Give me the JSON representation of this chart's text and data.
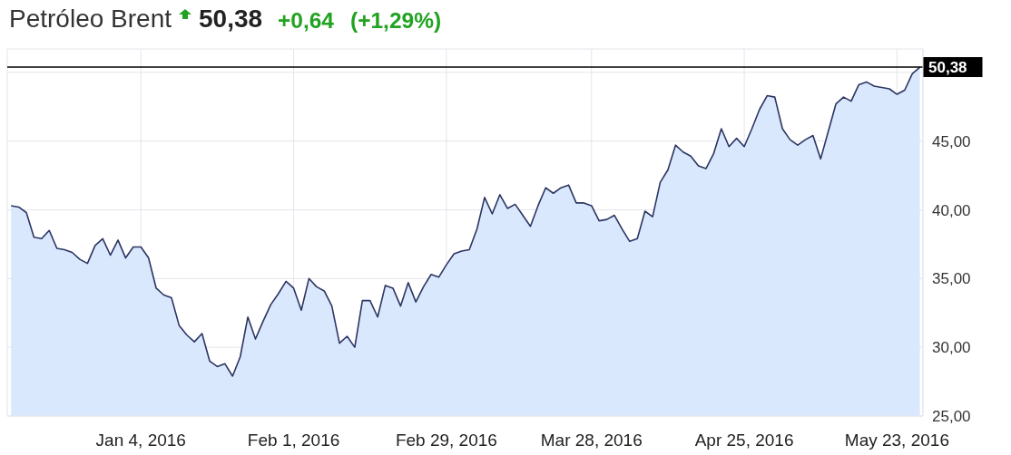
{
  "chart_data": {
    "type": "area",
    "title": "Petróleo Brent",
    "annotations": [
      "50,38",
      "+0,64",
      "(+1,29%)"
    ],
    "categories": [
      null,
      null,
      null,
      null,
      null,
      null,
      null,
      null,
      null,
      null,
      null,
      null,
      null,
      null,
      null,
      null,
      null,
      "Jan 4, 2016",
      null,
      null,
      null,
      null,
      null,
      null,
      null,
      null,
      null,
      null,
      null,
      null,
      null,
      null,
      null,
      null,
      null,
      null,
      null,
      "Feb 1, 2016",
      null,
      null,
      null,
      null,
      null,
      null,
      null,
      null,
      null,
      null,
      null,
      null,
      null,
      null,
      null,
      null,
      null,
      null,
      null,
      "Feb 29, 2016",
      null,
      null,
      null,
      null,
      null,
      null,
      null,
      null,
      null,
      null,
      null,
      null,
      null,
      null,
      null,
      null,
      null,
      null,
      "Mar 28, 2016",
      null,
      null,
      null,
      null,
      null,
      null,
      null,
      null,
      null,
      null,
      null,
      null,
      null,
      null,
      null,
      null,
      null,
      null,
      null,
      "Apr 25, 2016",
      null,
      null,
      null,
      null,
      null,
      null,
      null,
      null,
      null,
      null,
      null,
      null,
      null,
      null,
      null,
      null,
      null,
      null,
      null,
      "May 23, 2016",
      null,
      null,
      null
    ],
    "series": [
      {
        "color": "#d9e8fc",
        "values": [
          40.3,
          40.2,
          39.8,
          38.0,
          37.9,
          38.5,
          37.2,
          37.1,
          36.9,
          36.4,
          36.1,
          37.4,
          37.9,
          36.7,
          37.8,
          36.5,
          37.3,
          37.3,
          36.5,
          34.3,
          33.8,
          33.6,
          31.6,
          30.9,
          30.4,
          31.0,
          29.0,
          28.6,
          28.8,
          27.9,
          29.3,
          32.2,
          30.6,
          31.9,
          33.1,
          33.9,
          34.8,
          34.3,
          32.7,
          35.0,
          34.4,
          34.1,
          33.0,
          30.3,
          30.8,
          30.0,
          33.4,
          33.4,
          32.2,
          34.5,
          34.3,
          33.0,
          34.7,
          33.3,
          34.4,
          35.3,
          35.1,
          36.0,
          36.8,
          37.0,
          37.1,
          38.6,
          40.9,
          39.7,
          41.1,
          40.1,
          40.4,
          39.6,
          38.8,
          40.3,
          41.6,
          41.2,
          41.6,
          41.8,
          40.5,
          40.5,
          40.3,
          39.2,
          39.3,
          39.6,
          38.6,
          37.7,
          37.9,
          39.9,
          39.5,
          42.0,
          42.9,
          44.7,
          44.2,
          43.9,
          43.2,
          43.0,
          44.1,
          45.9,
          44.6,
          45.2,
          44.6,
          45.9,
          47.3,
          48.3,
          48.2,
          45.9,
          45.1,
          44.7,
          45.1,
          45.4,
          43.7,
          45.7,
          47.7,
          48.2,
          47.9,
          49.1,
          49.3,
          49.0,
          48.9,
          48.8,
          48.4,
          48.7,
          49.9,
          50.38
        ]
      }
    ],
    "ylim": [
      25,
      51.7
    ],
    "yticks": [
      {
        "value": 25,
        "label": "25,00"
      },
      {
        "value": 30,
        "label": "30,00"
      },
      {
        "value": 35,
        "label": "35,00"
      },
      {
        "value": 40,
        "label": "40,00"
      },
      {
        "value": 45,
        "label": "45,00"
      },
      {
        "value": 50,
        "label": null
      }
    ],
    "grid": true,
    "ref_lines": [
      {
        "axis": "y",
        "value": 50.38,
        "label": "50,38",
        "color": "#000000"
      }
    ]
  }
}
